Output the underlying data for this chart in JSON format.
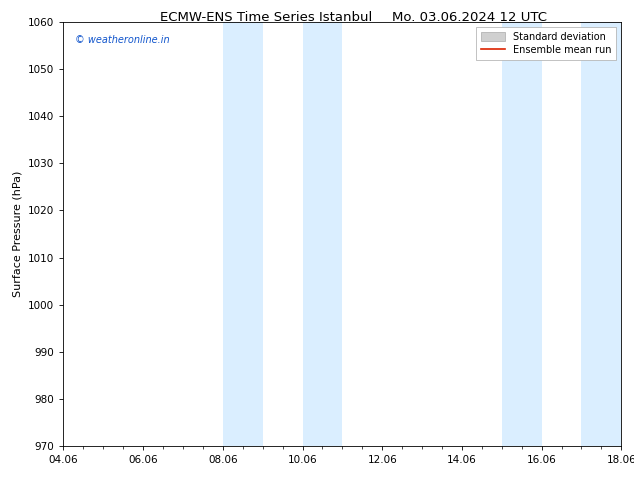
{
  "title_left": "ECMW-ENS Time Series Istanbul",
  "title_right": "Mo. 03.06.2024 12 UTC",
  "ylabel": "Surface Pressure (hPa)",
  "ylim": [
    970,
    1060
  ],
  "yticks": [
    970,
    980,
    990,
    1000,
    1010,
    1020,
    1030,
    1040,
    1050,
    1060
  ],
  "xticks": [
    "04.06",
    "06.06",
    "08.06",
    "10.06",
    "12.06",
    "14.06",
    "16.06",
    "18.06"
  ],
  "xtick_positions": [
    0,
    2,
    4,
    6,
    8,
    10,
    12,
    14
  ],
  "shaded_regions": [
    {
      "x_start": 4.0,
      "x_end": 5.0,
      "color": "#daeeff"
    },
    {
      "x_start": 6.0,
      "x_end": 7.0,
      "color": "#daeeff"
    },
    {
      "x_start": 11.0,
      "x_end": 12.0,
      "color": "#daeeff"
    },
    {
      "x_start": 13.0,
      "x_end": 14.0,
      "color": "#daeeff"
    }
  ],
  "watermark_text": "© weatheronline.in",
  "watermark_color": "#1155cc",
  "legend_std_label": "Standard deviation",
  "legend_mean_label": "Ensemble mean run",
  "legend_std_color": "#d0d0d0",
  "legend_std_edge": "#aaaaaa",
  "legend_mean_color": "#dd2200",
  "bg_color": "#ffffff",
  "spine_color": "#000000",
  "title_fontsize": 9.5,
  "tick_fontsize": 7.5,
  "ylabel_fontsize": 8,
  "watermark_fontsize": 7,
  "legend_fontsize": 7
}
